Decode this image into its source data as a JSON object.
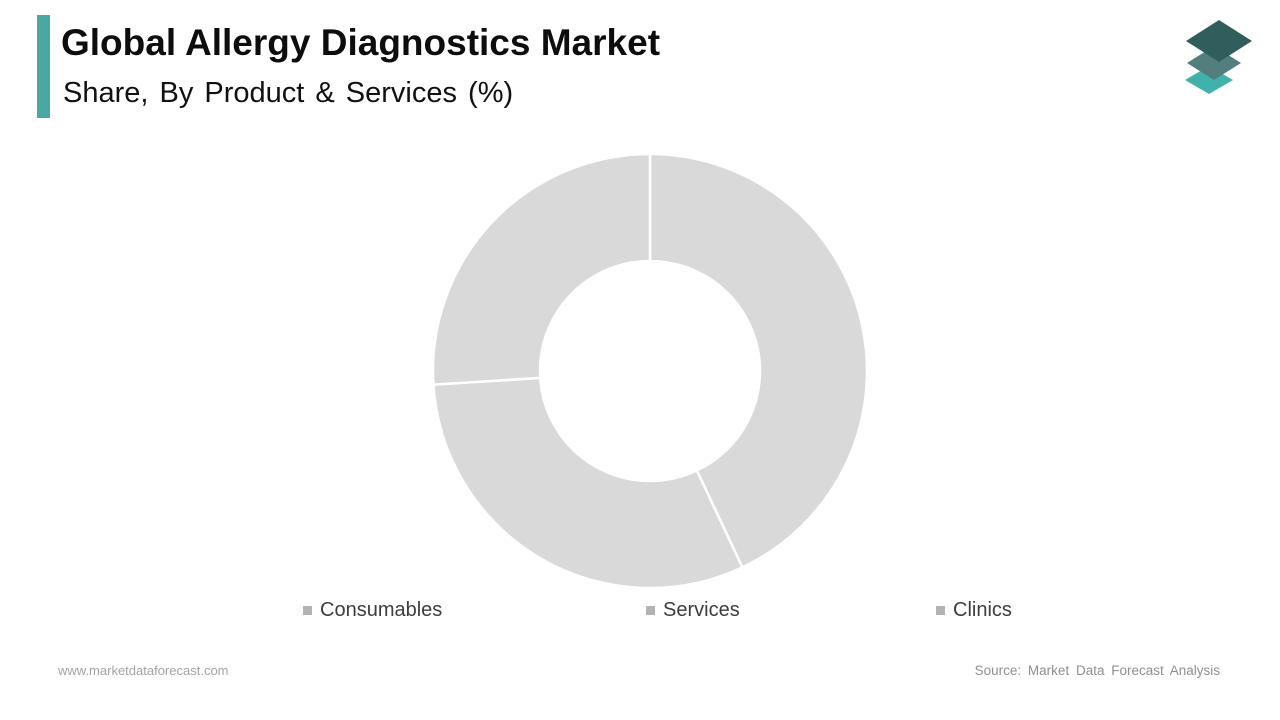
{
  "header": {
    "title": "Global Allergy Diagnostics Market",
    "subtitle": "Share, By Product & Services (%)",
    "accent_color": "#4aa8a2"
  },
  "logo": {
    "name": "market-data-forecast-logo",
    "layer_colors": [
      "#2f5e5c",
      "#527f7d",
      "#41b1ab"
    ]
  },
  "chart_data": {
    "type": "pie",
    "variant": "donut",
    "title": "Global Allergy Diagnostics Market Share, By Product & Services (%)",
    "categories": [
      "Consumables",
      "Services",
      "Clinics"
    ],
    "values": [
      43,
      31,
      26
    ],
    "unit": "%",
    "start_angle_deg": 0,
    "direction": "clockwise",
    "slice_color": "#d9d9d9",
    "divider_color": "#ffffff",
    "legend_position": "bottom",
    "legend_marker_color": "#b3b3b3",
    "data_labels_shown": false
  },
  "footer": {
    "website": "www.marketdataforecast.com",
    "source": "Source: Market Data Forecast Analysis"
  }
}
